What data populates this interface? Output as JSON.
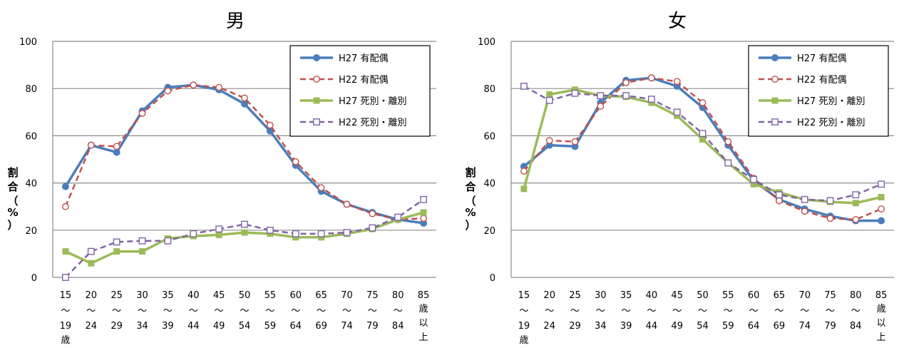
{
  "chart_data": [
    {
      "type": "line",
      "title": "男",
      "ylabel": "割合（%）",
      "ylim": [
        0,
        100
      ],
      "yticks": [
        0,
        20,
        40,
        60,
        80,
        100
      ],
      "grid": true,
      "legend": "top-right",
      "categories": [
        {
          "top": "15",
          "mid": "～",
          "bot": [
            "19",
            "歳"
          ]
        },
        {
          "top": "20",
          "mid": "～",
          "bot": [
            "24"
          ]
        },
        {
          "top": "25",
          "mid": "～",
          "bot": [
            "29"
          ]
        },
        {
          "top": "30",
          "mid": "～",
          "bot": [
            "34"
          ]
        },
        {
          "top": "35",
          "mid": "～",
          "bot": [
            "39"
          ]
        },
        {
          "top": "40",
          "mid": "～",
          "bot": [
            "44"
          ]
        },
        {
          "top": "45",
          "mid": "～",
          "bot": [
            "49"
          ]
        },
        {
          "top": "50",
          "mid": "～",
          "bot": [
            "54"
          ]
        },
        {
          "top": "55",
          "mid": "～",
          "bot": [
            "59"
          ]
        },
        {
          "top": "60",
          "mid": "～",
          "bot": [
            "64"
          ]
        },
        {
          "top": "65",
          "mid": "～",
          "bot": [
            "69"
          ]
        },
        {
          "top": "70",
          "mid": "～",
          "bot": [
            "74"
          ]
        },
        {
          "top": "75",
          "mid": "～",
          "bot": [
            "79"
          ]
        },
        {
          "top": "80",
          "mid": "～",
          "bot": [
            "84"
          ]
        },
        {
          "top": "85",
          "mid": "",
          "bot": [
            "歳",
            "以",
            "上"
          ]
        }
      ],
      "series": [
        {
          "name": "H27 有配偶",
          "color": "#4a7ebb",
          "dash": false,
          "marker": "circle-filled",
          "values": [
            38.5,
            56,
            53,
            70.5,
            80.5,
            81.5,
            79.5,
            73.5,
            62,
            47.5,
            36.5,
            31,
            27.5,
            24.5,
            23
          ]
        },
        {
          "name": "H22 有配偶",
          "color": "#c0504d",
          "dash": true,
          "marker": "circle-open",
          "values": [
            30,
            56,
            55.5,
            69.5,
            79,
            81.5,
            80.5,
            76,
            64.5,
            49,
            38,
            31,
            27,
            24.5,
            25
          ]
        },
        {
          "name": "H27 死別・離別",
          "color": "#9bbb59",
          "dash": false,
          "marker": "square-filled",
          "values": [
            11,
            6,
            11,
            11,
            16.5,
            17.5,
            18,
            19,
            18.5,
            17,
            17,
            18.5,
            20.5,
            24.5,
            27.5
          ]
        },
        {
          "name": "H22 死別・離別",
          "color": "#8064a2",
          "dash": true,
          "marker": "square-open",
          "values": [
            0,
            11,
            15,
            15.5,
            15.5,
            18.5,
            20.5,
            22.5,
            20,
            18.5,
            18.5,
            19,
            21,
            25.5,
            33
          ]
        }
      ]
    },
    {
      "type": "line",
      "title": "女",
      "ylabel": "割合（%）",
      "ylim": [
        0,
        100
      ],
      "yticks": [
        0,
        20,
        40,
        60,
        80,
        100
      ],
      "grid": true,
      "legend": "top-right",
      "categories": [
        {
          "top": "15",
          "mid": "～",
          "bot": [
            "19",
            "歳"
          ]
        },
        {
          "top": "20",
          "mid": "～",
          "bot": [
            "24"
          ]
        },
        {
          "top": "25",
          "mid": "～",
          "bot": [
            "29"
          ]
        },
        {
          "top": "30",
          "mid": "～",
          "bot": [
            "34"
          ]
        },
        {
          "top": "35",
          "mid": "～",
          "bot": [
            "39"
          ]
        },
        {
          "top": "40",
          "mid": "～",
          "bot": [
            "44"
          ]
        },
        {
          "top": "45",
          "mid": "～",
          "bot": [
            "49"
          ]
        },
        {
          "top": "50",
          "mid": "～",
          "bot": [
            "54"
          ]
        },
        {
          "top": "55",
          "mid": "～",
          "bot": [
            "59"
          ]
        },
        {
          "top": "60",
          "mid": "～",
          "bot": [
            "64"
          ]
        },
        {
          "top": "65",
          "mid": "～",
          "bot": [
            "69"
          ]
        },
        {
          "top": "70",
          "mid": "～",
          "bot": [
            "74"
          ]
        },
        {
          "top": "75",
          "mid": "～",
          "bot": [
            "79"
          ]
        },
        {
          "top": "80",
          "mid": "～",
          "bot": [
            "84"
          ]
        },
        {
          "top": "85",
          "mid": "",
          "bot": [
            "歳",
            "以",
            "上"
          ]
        }
      ],
      "series": [
        {
          "name": "H27 有配偶",
          "color": "#4a7ebb",
          "dash": false,
          "marker": "circle-filled",
          "values": [
            47,
            56,
            55.5,
            74,
            83.5,
            84.5,
            81,
            72,
            56,
            41,
            33,
            29,
            26,
            24,
            24
          ]
        },
        {
          "name": "H22 有配偶",
          "color": "#c0504d",
          "dash": true,
          "marker": "circle-open",
          "values": [
            45,
            58,
            57.5,
            72.5,
            82.5,
            84.5,
            83,
            74,
            57.5,
            42,
            32.5,
            28,
            25,
            24.5,
            29
          ]
        },
        {
          "name": "H27 死別・離別",
          "color": "#9bbb59",
          "dash": false,
          "marker": "square-filled",
          "values": [
            37.5,
            77.5,
            79.5,
            77,
            76.5,
            74,
            68.5,
            58.5,
            48.5,
            39.5,
            36,
            33,
            32,
            31.5,
            34
          ]
        },
        {
          "name": "H22 死別・離別",
          "color": "#8064a2",
          "dash": true,
          "marker": "square-open",
          "values": [
            81,
            75,
            78,
            77,
            77,
            75.5,
            70,
            61,
            48.5,
            41.5,
            35,
            33,
            32.5,
            35,
            39.5
          ]
        }
      ]
    }
  ]
}
